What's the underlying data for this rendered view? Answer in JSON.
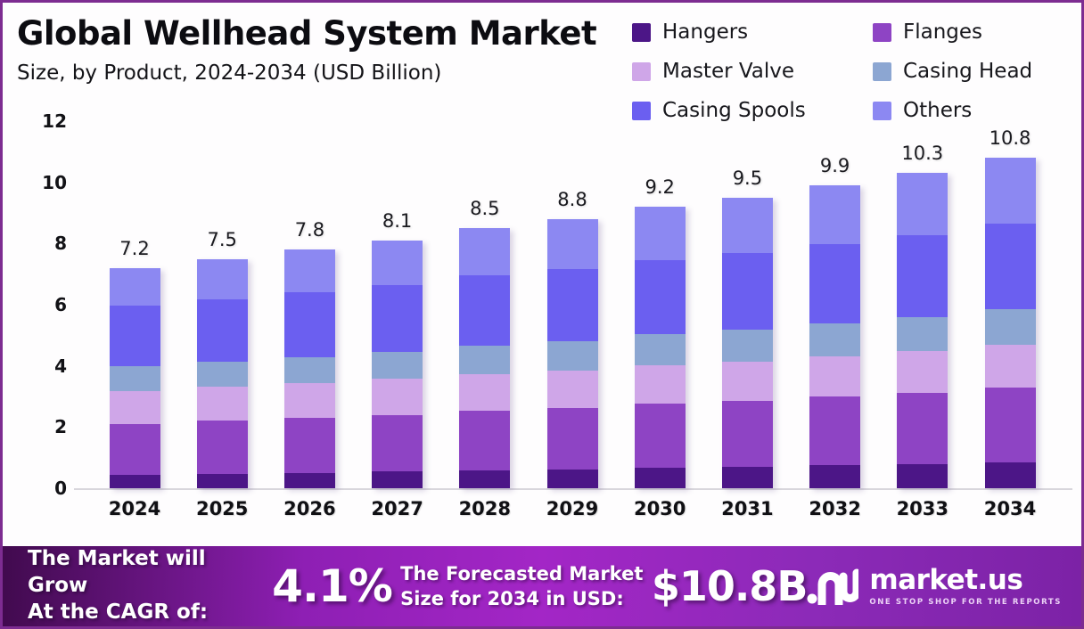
{
  "frame": {
    "border_color": "#7d2c91",
    "background": "#fefdfe"
  },
  "header": {
    "title": "Global Wellhead System Market",
    "subtitle": "Size, by Product, 2024-2034 (USD Billion)"
  },
  "chart_data": {
    "type": "bar",
    "stacked": true,
    "title": "Global Wellhead System Market Size, by Product, 2024-2034 (USD Billion)",
    "xlabel": "",
    "ylabel": "",
    "ylim": [
      0,
      12
    ],
    "yticks": [
      0,
      2,
      4,
      6,
      8,
      10,
      12
    ],
    "grid": false,
    "legend_position": "top-right",
    "categories": [
      "2024",
      "2025",
      "2026",
      "2027",
      "2028",
      "2029",
      "2030",
      "2031",
      "2032",
      "2033",
      "2034"
    ],
    "totals": [
      "7.2",
      "7.5",
      "7.8",
      "8.1",
      "8.5",
      "8.8",
      "9.2",
      "9.5",
      "9.9",
      "10.3",
      "10.8"
    ],
    "series": [
      {
        "name": "Hangers",
        "color": "#4c1687",
        "values": [
          0.45,
          0.48,
          0.51,
          0.55,
          0.59,
          0.62,
          0.66,
          0.7,
          0.75,
          0.79,
          0.85
        ]
      },
      {
        "name": "Flanges",
        "color": "#8e44c4",
        "values": [
          1.65,
          1.72,
          1.78,
          1.85,
          1.94,
          2.01,
          2.1,
          2.16,
          2.25,
          2.34,
          2.45
        ]
      },
      {
        "name": "Master Valve",
        "color": "#cfa6e8",
        "values": [
          1.08,
          1.11,
          1.14,
          1.17,
          1.21,
          1.23,
          1.27,
          1.29,
          1.32,
          1.36,
          1.4
        ]
      },
      {
        "name": "Casing Head",
        "color": "#8ca6d2",
        "values": [
          0.8,
          0.83,
          0.86,
          0.89,
          0.93,
          0.96,
          1.0,
          1.03,
          1.06,
          1.1,
          1.15
        ]
      },
      {
        "name": "Casing Spools",
        "color": "#6b5ff0",
        "values": [
          1.98,
          2.05,
          2.12,
          2.19,
          2.28,
          2.35,
          2.44,
          2.51,
          2.6,
          2.69,
          2.8
        ]
      },
      {
        "name": "Others",
        "color": "#8c88f2",
        "values": [
          1.24,
          1.31,
          1.39,
          1.46,
          1.56,
          1.63,
          1.73,
          1.81,
          1.92,
          2.02,
          2.15
        ]
      }
    ]
  },
  "footer": {
    "cagr_line1": "The Market will Grow",
    "cagr_line2": "At the CAGR of:",
    "cagr_value": "4.1%",
    "forecast_line1": "The Forecasted Market",
    "forecast_line2": "Size for 2034 in USD:",
    "forecast_value": "$10.8B",
    "brand_name": "market.us",
    "brand_tagline": "ONE STOP SHOP FOR THE REPORTS",
    "gradient": [
      "#410a4e",
      "#8e1fb4",
      "#a326c6",
      "#8c2ab8",
      "#7c22a6"
    ]
  }
}
